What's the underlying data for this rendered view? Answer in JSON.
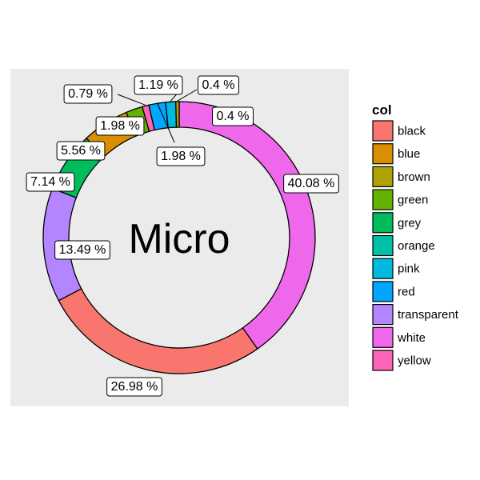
{
  "chart_data": {
    "type": "pie",
    "center_label": "Micro",
    "legend_title": "col",
    "legend_position": "right",
    "categories": [
      "black",
      "blue",
      "brown",
      "green",
      "grey",
      "orange",
      "pink",
      "red",
      "transparent",
      "white",
      "yellow"
    ],
    "values": [
      26.98,
      5.56,
      0.4,
      1.98,
      7.14,
      0,
      1.19,
      1.98,
      13.49,
      40.08,
      0.79
    ],
    "labels": [
      "26.98 %",
      "5.56 %",
      "0.4 %",
      "1.98 %",
      "7.14 %",
      "",
      "1.19 %",
      "1.98 %",
      "13.49 %",
      "40.08 %",
      "0.79 %"
    ],
    "slice_order": [
      "white",
      "black",
      "transparent",
      "grey",
      "blue",
      "green",
      "yellow",
      "red",
      "pink",
      "orange",
      "brown"
    ],
    "colors": {
      "black": "#F8766D",
      "blue": "#DB8E00",
      "brown": "#AEA200",
      "green": "#64B200",
      "grey": "#00BD5C",
      "orange": "#00C1A7",
      "pink": "#00BADE",
      "red": "#00A6FF",
      "transparent": "#B385FF",
      "white": "#EF67EB",
      "yellow": "#FF63B6"
    },
    "panel_background": "#EBEBEB"
  }
}
